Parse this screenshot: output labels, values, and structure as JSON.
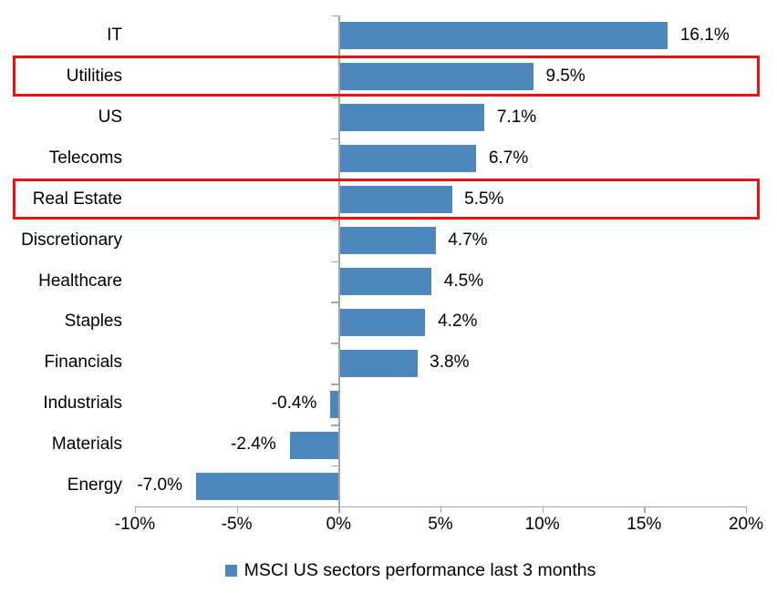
{
  "chart_data": {
    "type": "bar",
    "orientation": "horizontal",
    "title": "",
    "categories": [
      "IT",
      "Utilities",
      "US",
      "Telecoms",
      "Real Estate",
      "Discretionary",
      "Healthcare",
      "Staples",
      "Financials",
      "Industrials",
      "Materials",
      "Energy"
    ],
    "values": [
      16.1,
      9.5,
      7.1,
      6.7,
      5.5,
      4.7,
      4.5,
      4.2,
      3.8,
      -0.4,
      -2.4,
      -7.0
    ],
    "value_labels": [
      "16.1%",
      "9.5%",
      "7.1%",
      "6.7%",
      "5.5%",
      "4.7%",
      "4.5%",
      "4.2%",
      "3.8%",
      "-0.4%",
      "-2.4%",
      "-7.0%"
    ],
    "highlighted_categories": [
      "Utilities",
      "Real Estate"
    ],
    "xlim": [
      -10,
      20
    ],
    "x_ticks": [
      -10,
      -5,
      0,
      5,
      10,
      15,
      20
    ],
    "x_tick_labels": [
      "-10%",
      "-5%",
      "0%",
      "5%",
      "10%",
      "15%",
      "20%"
    ],
    "grid": false,
    "colors": {
      "bar": "#4e86be",
      "axis": "#a6a6a6",
      "text": "#000000",
      "highlight_border": "#f70d0d"
    },
    "legend": {
      "position": "bottom",
      "entries": [
        {
          "label": "MSCI US sectors performance last 3 months",
          "color": "#4e86be"
        }
      ]
    }
  }
}
